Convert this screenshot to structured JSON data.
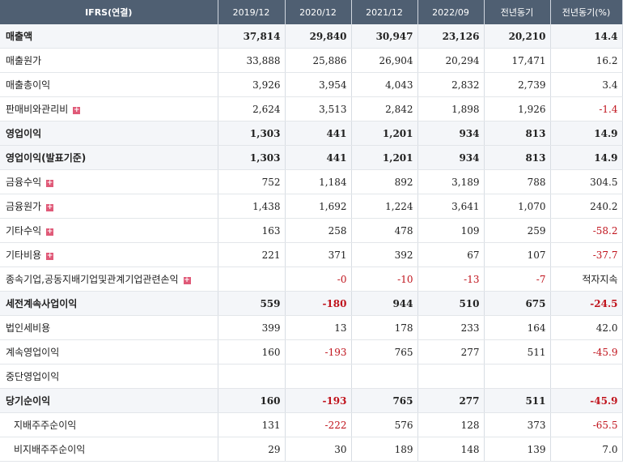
{
  "header": {
    "item": "IFRS(연결)",
    "cols": [
      "2019/12",
      "2020/12",
      "2021/12",
      "2022/09",
      "전년동기",
      "전년동기(%)"
    ]
  },
  "rows": [
    {
      "label": "매출액",
      "values": [
        "37,814",
        "29,840",
        "30,947",
        "23,126",
        "20,210",
        "14.4"
      ],
      "bold": true
    },
    {
      "label": "매출원가",
      "values": [
        "33,888",
        "25,886",
        "26,904",
        "20,294",
        "17,471",
        "16.2"
      ]
    },
    {
      "label": "매출총이익",
      "values": [
        "3,926",
        "3,954",
        "4,043",
        "2,832",
        "2,739",
        "3.4"
      ]
    },
    {
      "label": "판매비와관리비",
      "values": [
        "2,624",
        "3,513",
        "2,842",
        "1,898",
        "1,926",
        "-1.4"
      ],
      "expand": true
    },
    {
      "label": "영업이익",
      "values": [
        "1,303",
        "441",
        "1,201",
        "934",
        "813",
        "14.9"
      ],
      "bold": true
    },
    {
      "label": "영업이익(발표기준)",
      "values": [
        "1,303",
        "441",
        "1,201",
        "934",
        "813",
        "14.9"
      ],
      "bold": true
    },
    {
      "label": "금융수익",
      "values": [
        "752",
        "1,184",
        "892",
        "3,189",
        "788",
        "304.5"
      ],
      "expand": true
    },
    {
      "label": "금융원가",
      "values": [
        "1,438",
        "1,692",
        "1,224",
        "3,641",
        "1,070",
        "240.2"
      ],
      "expand": true
    },
    {
      "label": "기타수익",
      "values": [
        "163",
        "258",
        "478",
        "109",
        "259",
        "-58.2"
      ],
      "expand": true
    },
    {
      "label": "기타비용",
      "values": [
        "221",
        "371",
        "392",
        "67",
        "107",
        "-37.7"
      ],
      "expand": true
    },
    {
      "label": "종속기업,공동지배기업및관계기업관련손익",
      "values": [
        "",
        "-0",
        "-10",
        "-13",
        "-7",
        "적자지속"
      ],
      "expand": true
    },
    {
      "label": "세전계속사업이익",
      "values": [
        "559",
        "-180",
        "944",
        "510",
        "675",
        "-24.5"
      ],
      "bold": true
    },
    {
      "label": "법인세비용",
      "values": [
        "399",
        "13",
        "178",
        "233",
        "164",
        "42.0"
      ]
    },
    {
      "label": "계속영업이익",
      "values": [
        "160",
        "-193",
        "765",
        "277",
        "511",
        "-45.9"
      ]
    },
    {
      "label": "중단영업이익",
      "values": [
        "",
        "",
        "",
        "",
        "",
        ""
      ]
    },
    {
      "label": "당기순이익",
      "values": [
        "160",
        "-193",
        "765",
        "277",
        "511",
        "-45.9"
      ],
      "bold": true
    },
    {
      "label": "지배주주순이익",
      "values": [
        "131",
        "-222",
        "576",
        "128",
        "373",
        "-65.5"
      ],
      "indent": true
    },
    {
      "label": "비지배주주순이익",
      "values": [
        "29",
        "30",
        "189",
        "148",
        "139",
        "7.0"
      ],
      "indent": true
    }
  ],
  "icons": {
    "expand": "plus-icon"
  },
  "colors": {
    "header_bg": "#4f5f72",
    "negative": "#c0141d",
    "expand": "#e05a78"
  }
}
